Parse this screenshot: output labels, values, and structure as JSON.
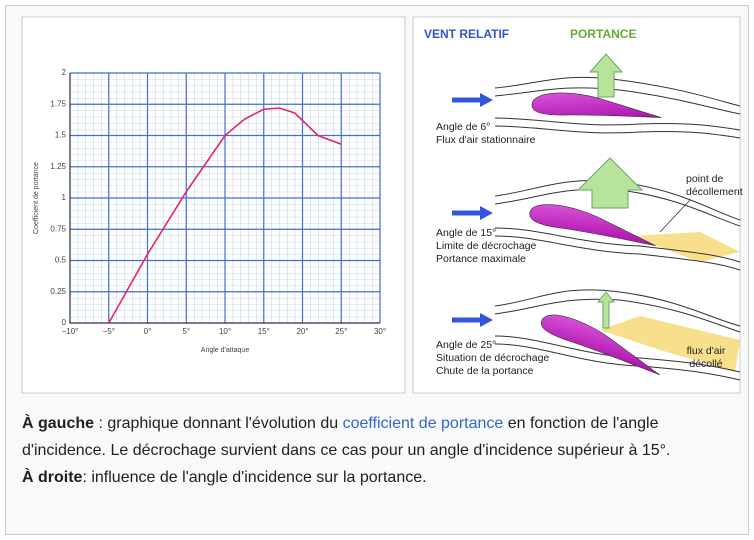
{
  "chart_data": {
    "type": "line",
    "y_label": "Coefficient de portance",
    "x_label": "Angle d'attaque",
    "x": [
      -5,
      0,
      5,
      10,
      12.5,
      15,
      17,
      19,
      20,
      22,
      25
    ],
    "values": [
      0,
      0.55,
      1.05,
      1.5,
      1.63,
      1.71,
      1.72,
      1.68,
      1.62,
      1.5,
      1.43
    ],
    "color": "#e8265e",
    "xlim": [
      -10,
      30
    ],
    "xticks": [
      {
        "value": -10,
        "label": "−10°"
      },
      {
        "value": -5,
        "label": "−5°"
      },
      {
        "value": 0,
        "label": "0°"
      },
      {
        "value": 5,
        "label": "5°"
      },
      {
        "value": 10,
        "label": "10°"
      },
      {
        "value": 15,
        "label": "15°"
      },
      {
        "value": 20,
        "label": "20°"
      },
      {
        "value": 25,
        "label": "25°"
      },
      {
        "value": 30,
        "label": "30°"
      }
    ],
    "ylim": [
      0,
      2
    ],
    "yticks": [
      0,
      0.25,
      0.5,
      0.75,
      1,
      1.25,
      1.5,
      1.75,
      2
    ],
    "grid": true
  },
  "diagram": {
    "wind": "VENT RELATIF",
    "lift": "PORTANCE",
    "panels": [
      {
        "lines": [
          "Angle de 6°",
          "Flux d'air stationnaire"
        ]
      },
      {
        "lines": [
          "Angle de 15°",
          "Limite de décrochage",
          "Portance maximale"
        ],
        "note": [
          "point de",
          "décollement"
        ]
      },
      {
        "lines": [
          "Angle de 25°",
          "Situation de décrochage",
          "Chute de la portance"
        ],
        "note": [
          "flux d'air",
          "décollé"
        ]
      }
    ]
  },
  "caption": {
    "parts": [
      "À gauche",
      " : graphique donnant l'évolution du ",
      "coefficient de portance",
      " en fonction de l'angle d'incidence. Le décrochage survient dans ce cas pour un angle d'incidence supérieur à 15°."
    ],
    "parts2": [
      "À droite",
      ": influence de l'angle d'incidence sur la portance."
    ]
  }
}
